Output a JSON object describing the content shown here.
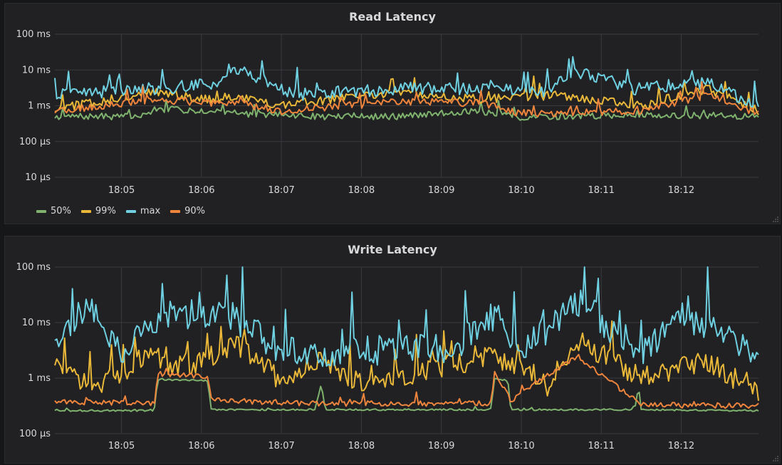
{
  "dashboard": {
    "colors": {
      "background": "#161719",
      "panel": "#212124",
      "grid": "#3a3b3e",
      "text": "#d8d9da"
    }
  },
  "chart_data": [
    {
      "type": "line",
      "title": "Read Latency",
      "y_scale": "log",
      "y_unit": "ms",
      "ylim": [
        0.01,
        100
      ],
      "y_ticks": [
        {
          "value": 100,
          "label": "100 ms"
        },
        {
          "value": 10,
          "label": "10 ms"
        },
        {
          "value": 1,
          "label": "1 ms"
        },
        {
          "value": 0.1,
          "label": "100 µs"
        },
        {
          "value": 0.01,
          "label": "10 µs"
        }
      ],
      "x_range": [
        "18:04:10",
        "18:12:58"
      ],
      "x_ticks": [
        "18:05",
        "18:06",
        "18:07",
        "18:08",
        "18:09",
        "18:10",
        "18:11",
        "18:12"
      ],
      "grid": true,
      "legend": {
        "show": true,
        "position": "bottom-left"
      },
      "series": [
        {
          "name": "50%",
          "color": "#7eb26d",
          "values": [
            {
              "x": "18:04:10",
              "y": 0.5
            },
            {
              "x": "18:05:15",
              "y": 0.5
            },
            {
              "x": "18:05:25",
              "y": 0.8
            },
            {
              "x": "18:06:20",
              "y": 0.7
            },
            {
              "x": "18:06:30",
              "y": 0.6
            },
            {
              "x": "18:07:30",
              "y": 0.5
            },
            {
              "x": "18:08:30",
              "y": 0.5
            },
            {
              "x": "18:09:20",
              "y": 0.7
            },
            {
              "x": "18:09:45",
              "y": 0.6
            },
            {
              "x": "18:10:00",
              "y": 0.45
            },
            {
              "x": "18:10:20",
              "y": 0.5
            },
            {
              "x": "18:11:30",
              "y": 0.55
            },
            {
              "x": "18:12:58",
              "y": 0.5
            }
          ]
        },
        {
          "name": "99%",
          "color": "#eab839",
          "values": [
            {
              "x": "18:04:10",
              "y": 0.8
            },
            {
              "x": "18:05:25",
              "y": 2.5
            },
            {
              "x": "18:06:00",
              "y": 1.5
            },
            {
              "x": "18:06:28",
              "y": 1.8
            },
            {
              "x": "18:07:00",
              "y": 1.0
            },
            {
              "x": "18:08:27",
              "y": 2.5
            },
            {
              "x": "18:09:30",
              "y": 1.5
            },
            {
              "x": "18:10:25",
              "y": 2.0
            },
            {
              "x": "18:11:30",
              "y": 1.0
            },
            {
              "x": "18:12:20",
              "y": 3.0
            },
            {
              "x": "18:12:58",
              "y": 0.7
            }
          ]
        },
        {
          "name": "max",
          "color": "#6ed0e0",
          "values": [
            {
              "x": "18:04:10",
              "y": 2.0
            },
            {
              "x": "18:05:22",
              "y": 3.0
            },
            {
              "x": "18:06:12",
              "y": 4.0
            },
            {
              "x": "18:06:28",
              "y": 11.0
            },
            {
              "x": "18:07:10",
              "y": 2.0
            },
            {
              "x": "18:08:27",
              "y": 3.0
            },
            {
              "x": "18:09:30",
              "y": 3.0
            },
            {
              "x": "18:10:20",
              "y": 2.5
            },
            {
              "x": "18:10:38",
              "y": 9.5
            },
            {
              "x": "18:11:25",
              "y": 3.0
            },
            {
              "x": "18:12:18",
              "y": 4.5
            },
            {
              "x": "18:12:58",
              "y": 0.9
            }
          ]
        },
        {
          "name": "90%",
          "color": "#ef843c",
          "values": [
            {
              "x": "18:04:10",
              "y": 0.7
            },
            {
              "x": "18:05:25",
              "y": 1.5
            },
            {
              "x": "18:06:00",
              "y": 1.2
            },
            {
              "x": "18:06:28",
              "y": 1.2
            },
            {
              "x": "18:07:00",
              "y": 0.7
            },
            {
              "x": "18:08:27",
              "y": 1.3
            },
            {
              "x": "18:09:30",
              "y": 1.2
            },
            {
              "x": "18:10:00",
              "y": 0.6
            },
            {
              "x": "18:11:30",
              "y": 0.7
            },
            {
              "x": "18:12:20",
              "y": 2.0
            },
            {
              "x": "18:12:58",
              "y": 0.6
            }
          ]
        }
      ]
    },
    {
      "type": "line",
      "title": "Write Latency",
      "y_scale": "log",
      "y_unit": "ms",
      "ylim": [
        0.1,
        100
      ],
      "y_ticks": [
        {
          "value": 100,
          "label": "100 ms"
        },
        {
          "value": 10,
          "label": "10 ms"
        },
        {
          "value": 1,
          "label": "1 ms"
        },
        {
          "value": 0.1,
          "label": "100 µs"
        }
      ],
      "x_range": [
        "18:04:10",
        "18:12:58"
      ],
      "x_ticks": [
        "18:05",
        "18:06",
        "18:07",
        "18:08",
        "18:09",
        "18:10",
        "18:11",
        "18:12"
      ],
      "grid": true,
      "legend": {
        "show": false
      },
      "series": [
        {
          "name": "50%",
          "color": "#7eb26d",
          "values": [
            {
              "x": "18:04:10",
              "y": 0.26
            },
            {
              "x": "18:05:25",
              "y": 0.26
            },
            {
              "x": "18:05:27",
              "y": 0.95
            },
            {
              "x": "18:06:05",
              "y": 0.9
            },
            {
              "x": "18:06:07",
              "y": 0.27
            },
            {
              "x": "18:07:25",
              "y": 0.27
            },
            {
              "x": "18:07:30",
              "y": 0.8
            },
            {
              "x": "18:07:33",
              "y": 0.27
            },
            {
              "x": "18:09:37",
              "y": 0.27
            },
            {
              "x": "18:09:40",
              "y": 1.0
            },
            {
              "x": "18:09:50",
              "y": 0.9
            },
            {
              "x": "18:09:52",
              "y": 0.27
            },
            {
              "x": "18:11:25",
              "y": 0.27
            },
            {
              "x": "18:11:28",
              "y": 0.7
            },
            {
              "x": "18:11:30",
              "y": 0.27
            },
            {
              "x": "18:12:58",
              "y": 0.26
            }
          ]
        },
        {
          "name": "99%",
          "color": "#eab839",
          "values": [
            {
              "x": "18:04:10",
              "y": 1.5
            },
            {
              "x": "18:04:40",
              "y": 0.7
            },
            {
              "x": "18:05:20",
              "y": 2.5
            },
            {
              "x": "18:05:30",
              "y": 1.5
            },
            {
              "x": "18:06:00",
              "y": 2.0
            },
            {
              "x": "18:06:28",
              "y": 4.0
            },
            {
              "x": "18:07:00",
              "y": 0.9
            },
            {
              "x": "18:07:30",
              "y": 2.0
            },
            {
              "x": "18:08:00",
              "y": 0.8
            },
            {
              "x": "18:09:40",
              "y": 2.5
            },
            {
              "x": "18:10:20",
              "y": 0.7
            },
            {
              "x": "18:10:42",
              "y": 5.0
            },
            {
              "x": "18:11:30",
              "y": 1.0
            },
            {
              "x": "18:12:20",
              "y": 2.0
            },
            {
              "x": "18:12:58",
              "y": 0.5
            }
          ]
        },
        {
          "name": "max",
          "color": "#6ed0e0",
          "values": [
            {
              "x": "18:04:10",
              "y": 4.0
            },
            {
              "x": "18:04:35",
              "y": 24.0
            },
            {
              "x": "18:05:00",
              "y": 3.0
            },
            {
              "x": "18:05:30",
              "y": 15.0
            },
            {
              "x": "18:06:20",
              "y": 14.0
            },
            {
              "x": "18:07:00",
              "y": 3.0
            },
            {
              "x": "18:08:00",
              "y": 3.0
            },
            {
              "x": "18:09:10",
              "y": 3.5
            },
            {
              "x": "18:09:42",
              "y": 15.0
            },
            {
              "x": "18:10:00",
              "y": 3.0
            },
            {
              "x": "18:10:42",
              "y": 24.0
            },
            {
              "x": "18:11:30",
              "y": 3.0
            },
            {
              "x": "18:12:00",
              "y": 14.0
            },
            {
              "x": "18:12:58",
              "y": 3.0
            }
          ]
        },
        {
          "name": "90%",
          "color": "#ef843c",
          "values": [
            {
              "x": "18:04:10",
              "y": 0.38
            },
            {
              "x": "18:05:25",
              "y": 0.35
            },
            {
              "x": "18:05:27",
              "y": 1.2
            },
            {
              "x": "18:06:05",
              "y": 1.1
            },
            {
              "x": "18:06:07",
              "y": 0.4
            },
            {
              "x": "18:07:25",
              "y": 0.35
            },
            {
              "x": "18:09:37",
              "y": 0.35
            },
            {
              "x": "18:09:40",
              "y": 1.3
            },
            {
              "x": "18:09:52",
              "y": 0.4
            },
            {
              "x": "18:10:42",
              "y": 2.5
            },
            {
              "x": "18:11:30",
              "y": 0.33
            },
            {
              "x": "18:12:58",
              "y": 0.32
            }
          ]
        }
      ]
    }
  ]
}
